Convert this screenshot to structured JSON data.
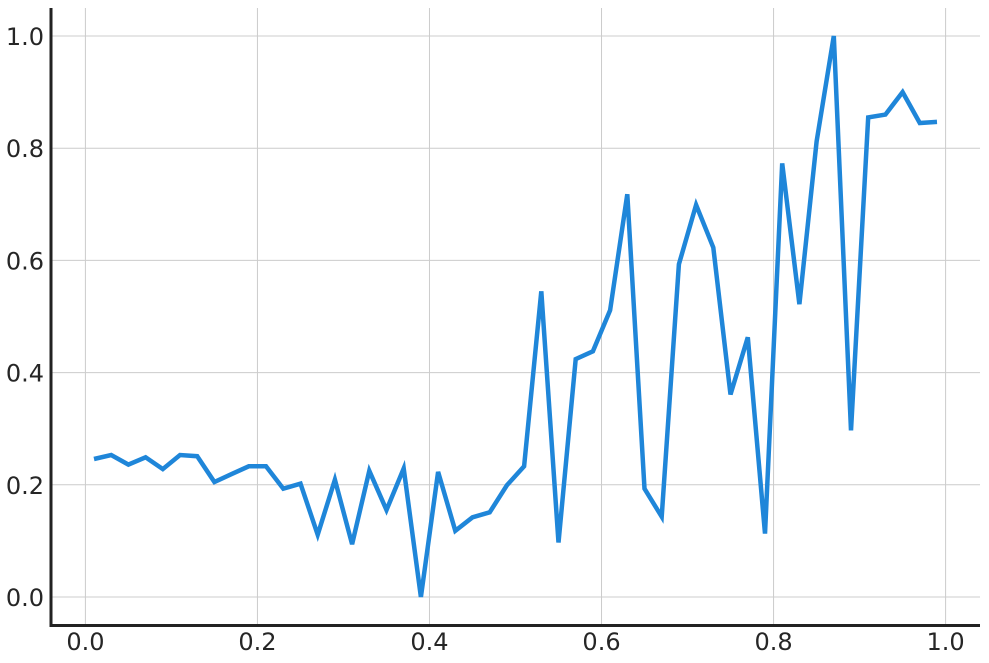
{
  "chart_data": {
    "type": "line",
    "title": "",
    "xlabel": "",
    "ylabel": "",
    "xlim": [
      -0.04,
      1.04
    ],
    "ylim": [
      -0.05,
      1.05
    ],
    "grid": true,
    "x_ticks": [
      0.0,
      0.2,
      0.4,
      0.6,
      0.8,
      1.0
    ],
    "y_ticks": [
      0.0,
      0.2,
      0.4,
      0.6,
      0.8,
      1.0
    ],
    "x_tick_labels": [
      "0.0",
      "0.2",
      "0.4",
      "0.6",
      "0.8",
      "1.0"
    ],
    "y_tick_labels": [
      "0.0",
      "0.2",
      "0.4",
      "0.6",
      "0.8",
      "1.0"
    ],
    "series": [
      {
        "color": "#1f86d9",
        "x": [
          0.01,
          0.03,
          0.05,
          0.07,
          0.09,
          0.11,
          0.13,
          0.15,
          0.17,
          0.19,
          0.21,
          0.23,
          0.25,
          0.27,
          0.29,
          0.31,
          0.33,
          0.35,
          0.37,
          0.39,
          0.41,
          0.43,
          0.45,
          0.47,
          0.49,
          0.51,
          0.53,
          0.55,
          0.57,
          0.59,
          0.61,
          0.63,
          0.65,
          0.67,
          0.69,
          0.71,
          0.73,
          0.75,
          0.77,
          0.79,
          0.81,
          0.83,
          0.85,
          0.87,
          0.89,
          0.91,
          0.93,
          0.95,
          0.97,
          0.99
        ],
        "y": [
          0.246,
          0.253,
          0.236,
          0.249,
          0.228,
          0.253,
          0.251,
          0.205,
          0.219,
          0.233,
          0.233,
          0.193,
          0.202,
          0.111,
          0.209,
          0.094,
          0.225,
          0.155,
          0.229,
          0.0,
          0.223,
          0.118,
          0.142,
          0.151,
          0.199,
          0.233,
          0.545,
          0.097,
          0.424,
          0.438,
          0.511,
          0.718,
          0.193,
          0.143,
          0.593,
          0.699,
          0.623,
          0.361,
          0.463,
          0.113,
          0.773,
          0.522,
          0.812,
          1.0,
          0.297,
          0.855,
          0.86,
          0.9,
          0.845,
          0.847
        ]
      }
    ]
  }
}
